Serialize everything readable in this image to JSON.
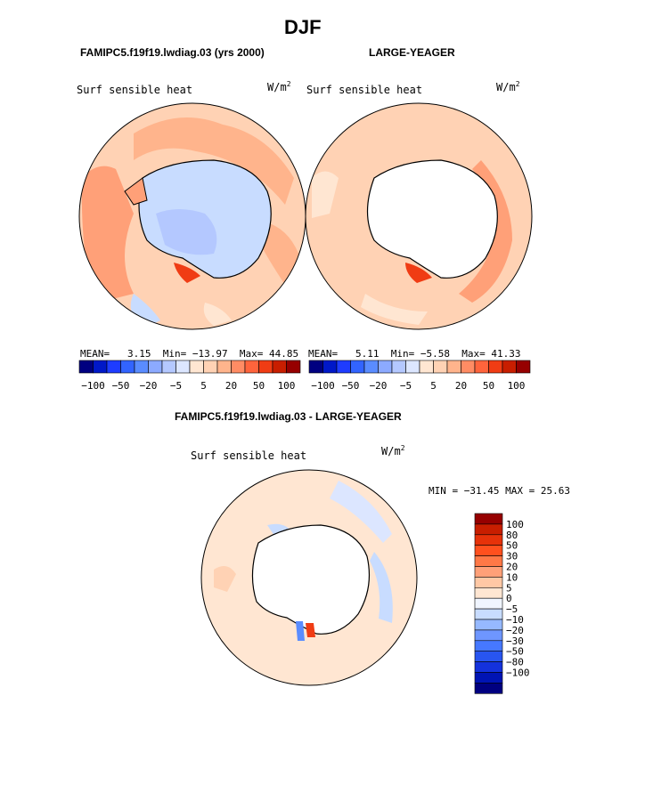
{
  "title": "DJF",
  "panels": [
    {
      "model_label": "FAMIPC5.f19f19.lwdiag.03 (yrs 2000)",
      "field": "Surf sensible heat",
      "units_base": "W/m",
      "units_exp": "2",
      "stats": {
        "mean_label": "MEAN=",
        "mean": "3.15",
        "min_label": "Min=",
        "min": "−13.97",
        "max_label": "Max=",
        "max": "44.85"
      }
    },
    {
      "model_label": "LARGE-YEAGER",
      "field": "Surf sensible heat",
      "units_base": "W/m",
      "units_exp": "2",
      "stats": {
        "mean_label": "MEAN=",
        "mean": "5.11",
        "min_label": "Min=",
        "min": "−5.58",
        "max_label": "Max=",
        "max": "41.33"
      }
    }
  ],
  "diff_panel": {
    "title": "FAMIPC5.f19f19.lwdiag.03 - LARGE-YEAGER",
    "field": "Surf sensible heat",
    "units_base": "W/m",
    "units_exp": "2",
    "stats_text": "MIN = −31.45 MAX =  25.63"
  },
  "colorbar_h": {
    "colors": [
      "#000080",
      "#0018c8",
      "#1e3cff",
      "#3264ff",
      "#5a8cff",
      "#8caaff",
      "#b4c8ff",
      "#dce6ff",
      "#ffe6d2",
      "#ffd2b4",
      "#ffb48c",
      "#ff8c64",
      "#ff643c",
      "#f03c14",
      "#c81e00",
      "#960000"
    ],
    "tick_labels": [
      "−100",
      "−50",
      "−20",
      "−5",
      "5",
      "20",
      "50",
      "100"
    ],
    "tick_positions": [
      1,
      3,
      5,
      7,
      9,
      11,
      13,
      15
    ]
  },
  "colorbar_v": {
    "colors_top_to_bottom": [
      "#960000",
      "#c81e00",
      "#e6320a",
      "#ff501e",
      "#ff7846",
      "#ffa078",
      "#ffc8a5",
      "#ffe6d2",
      "#f0f5ff",
      "#c8dcff",
      "#96b9ff",
      "#6e96ff",
      "#4678ff",
      "#2855f0",
      "#1432dc",
      "#0014b4",
      "#000080"
    ],
    "labels": [
      "100",
      "80",
      "50",
      "30",
      "20",
      "10",
      "5",
      "0",
      "−5",
      "−10",
      "−20",
      "−30",
      "−50",
      "−80",
      "−100"
    ]
  },
  "chart_data": [
    {
      "type": "heatmap",
      "projection": "south polar stereographic",
      "title": "FAMIPC5.f19f19.lwdiag.03 (yrs 2000)",
      "field": "Surf sensible heat",
      "units": "W/m2",
      "mean": 3.15,
      "min": -13.97,
      "max": 44.85,
      "contour_levels": [
        -100,
        -80,
        -50,
        -30,
        -20,
        -10,
        -5,
        0,
        5,
        10,
        20,
        30,
        50,
        80,
        100
      ]
    },
    {
      "type": "heatmap",
      "projection": "south polar stereographic",
      "title": "LARGE-YEAGER",
      "field": "Surf sensible heat",
      "units": "W/m2",
      "mean": 5.11,
      "min": -5.58,
      "max": 41.33,
      "contour_levels": [
        -100,
        -80,
        -50,
        -30,
        -20,
        -10,
        -5,
        0,
        5,
        10,
        20,
        30,
        50,
        80,
        100
      ]
    },
    {
      "type": "heatmap",
      "projection": "south polar stereographic",
      "title": "FAMIPC5.f19f19.lwdiag.03 - LARGE-YEAGER",
      "field": "Surf sensible heat",
      "units": "W/m2",
      "min": -31.45,
      "max": 25.63,
      "contour_levels": [
        -100,
        -80,
        -50,
        -30,
        -20,
        -10,
        -5,
        0,
        5,
        10,
        20,
        30,
        50,
        80,
        100
      ]
    }
  ]
}
